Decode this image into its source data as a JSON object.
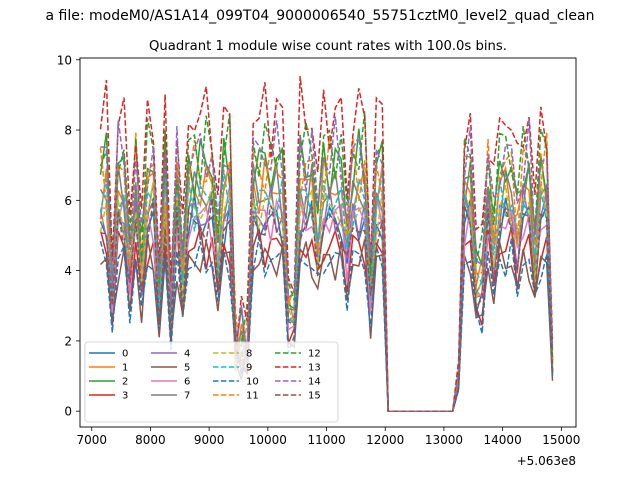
{
  "figure": {
    "suptitle": "a file: modeM0/AS1A14_099T04_9000006540_55751cztM0_level2_quad_clean"
  },
  "chart_data": {
    "type": "line",
    "title": "Quadrant 1 module wise count rates with 100.0s bins.",
    "xlabel": "",
    "ylabel": "",
    "x_offset_label": "+5.063e8",
    "xlim": [
      6800,
      15250
    ],
    "ylim": [
      -0.45,
      10.05
    ],
    "xticks": [
      7000,
      8000,
      9000,
      10000,
      11000,
      12000,
      13000,
      14000,
      15000
    ],
    "xtick_labels": [
      "7000",
      "8000",
      "9000",
      "10000",
      "11000",
      "12000",
      "13000",
      "14000",
      "15000"
    ],
    "yticks": [
      0,
      2,
      4,
      6,
      8,
      10
    ],
    "ytick_labels": [
      "0",
      "2",
      "4",
      "6",
      "8",
      "10"
    ],
    "grid": false,
    "legend_position": "lower-left",
    "legend_columns": 4,
    "x_start": 7150,
    "x_step": 100,
    "x_count": 78,
    "gap_x": [
      12100,
      13100
    ],
    "gap_value": 0,
    "series": [
      {
        "name": "0",
        "color": "#1f77b4",
        "dash": "solid",
        "mean": 5.4
      },
      {
        "name": "1",
        "color": "#ff7f0e",
        "dash": "solid",
        "mean": 6.4
      },
      {
        "name": "2",
        "color": "#2ca02c",
        "dash": "solid",
        "mean": 7.0
      },
      {
        "name": "3",
        "color": "#d62728",
        "dash": "solid",
        "mean": 4.7
      },
      {
        "name": "4",
        "color": "#9467bd",
        "dash": "solid",
        "mean": 5.6
      },
      {
        "name": "5",
        "color": "#8c564b",
        "dash": "solid",
        "mean": 4.3
      },
      {
        "name": "6",
        "color": "#e377c2",
        "dash": "solid",
        "mean": 5.5
      },
      {
        "name": "7",
        "color": "#7f7f7f",
        "dash": "solid",
        "mean": 6.2
      },
      {
        "name": "8",
        "color": "#bcbd22",
        "dash": "dashed",
        "mean": 5.8
      },
      {
        "name": "9",
        "color": "#17becf",
        "dash": "dashed",
        "mean": 6.0
      },
      {
        "name": "10",
        "color": "#1f77b4",
        "dash": "dashed",
        "mean": 4.3
      },
      {
        "name": "11",
        "color": "#ff7f0e",
        "dash": "dashed",
        "mean": 6.9
      },
      {
        "name": "12",
        "color": "#2ca02c",
        "dash": "dashed",
        "mean": 7.5
      },
      {
        "name": "13",
        "color": "#d62728",
        "dash": "dashed",
        "mean": 8.4
      },
      {
        "name": "14",
        "color": "#9467bd",
        "dash": "dashed",
        "mean": 7.3
      },
      {
        "name": "15",
        "color": "#8c564b",
        "dash": "dashed",
        "mean": 5.3
      }
    ]
  }
}
